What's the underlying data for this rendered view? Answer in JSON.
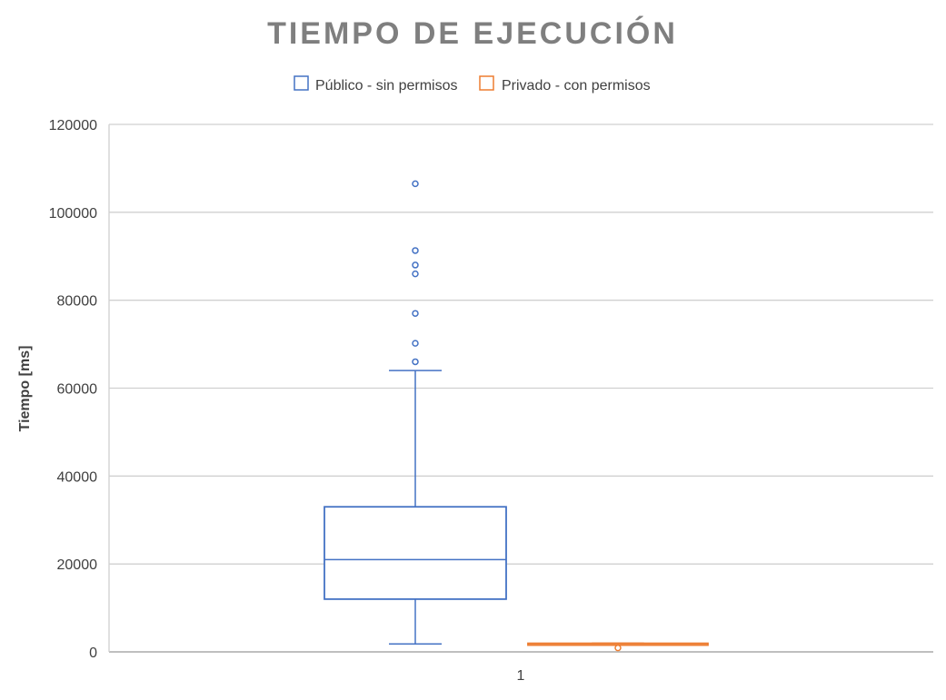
{
  "chart_data": {
    "type": "box",
    "title": "TIEMPO DE EJECUCIÓN",
    "xlabel": "",
    "ylabel": "Tiempo [ms]",
    "categories": [
      "1"
    ],
    "ylim": [
      0,
      120000
    ],
    "yticks": [
      0,
      20000,
      40000,
      60000,
      80000,
      100000,
      120000
    ],
    "grid": true,
    "legend_position": "top",
    "series": [
      {
        "name": "Público - sin permisos",
        "color": "#4472C4",
        "min": 1800,
        "q1": 12000,
        "median": 21000,
        "q3": 33000,
        "max": 64000,
        "outliers": [
          66000,
          70200,
          77000,
          86000,
          88000,
          91300,
          106500
        ]
      },
      {
        "name": "Privado - con permisos",
        "color": "#ED7D31",
        "min": 1750,
        "q1": 1800,
        "median": 1850,
        "q3": 1950,
        "max": 2000,
        "outliers": [
          900
        ]
      }
    ]
  }
}
